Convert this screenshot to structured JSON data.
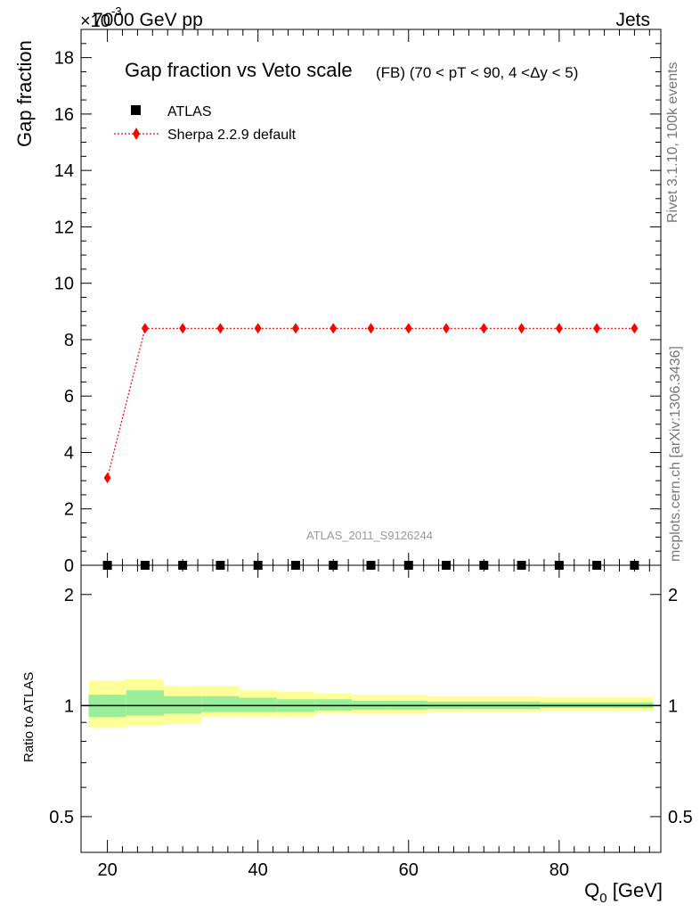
{
  "header": {
    "energy_label": "7000 GeV pp",
    "exponent_label": "×10",
    "exponent_power": "-3",
    "process_label": "Jets"
  },
  "side_labels": {
    "rivet": "Rivet 3.1.10,  100k events",
    "mcplots": "mcplots.cern.ch [arXiv:1306.3436]"
  },
  "colors": {
    "mc_line": "#ff0000",
    "band_inner": "#99ee99",
    "band_outer": "#ffff99"
  },
  "chart_data": [
    {
      "type": "line",
      "title": "Gap fraction vs Veto scale",
      "subtitle": "(FB) (70 < pT <  90, 4 <Δy < 5)",
      "ylabel": "Gap fraction",
      "watermark": "ATLAS_2011_S9126244",
      "ylim": [
        0,
        19
      ],
      "xlim": [
        16.5,
        93.5
      ],
      "yticks": [
        0,
        2,
        4,
        6,
        8,
        10,
        12,
        14,
        16,
        18
      ],
      "grid": false,
      "legend_position": "top-left",
      "series": [
        {
          "name": "ATLAS",
          "marker": "square",
          "x": [
            20,
            25,
            30,
            35,
            40,
            45,
            50,
            55,
            60,
            65,
            70,
            75,
            80,
            85,
            90
          ],
          "y": [
            0,
            0,
            0,
            0,
            0,
            0,
            0,
            0,
            0,
            0,
            0,
            0,
            0,
            0,
            0
          ]
        },
        {
          "name": "Sherpa 2.2.9 default",
          "marker": "diamond",
          "line": "dotted",
          "x": [
            20,
            25,
            30,
            35,
            40,
            45,
            50,
            55,
            60,
            65,
            70,
            75,
            80,
            85,
            90
          ],
          "y": [
            3.1,
            8.4,
            8.4,
            8.4,
            8.4,
            8.4,
            8.4,
            8.4,
            8.4,
            8.4,
            8.4,
            8.4,
            8.4,
            8.4,
            8.4
          ]
        }
      ]
    },
    {
      "type": "area",
      "ylabel": "Ratio to ATLAS",
      "xlabel_main": "Q",
      "xlabel_sub": "0",
      "xlabel_unit": " [GeV]",
      "xlim": [
        16.5,
        93.5
      ],
      "ylim": [
        0.4,
        2.4
      ],
      "xticks": [
        20,
        40,
        60,
        80
      ],
      "yticks": [
        0.5,
        1,
        2
      ],
      "reference_line": 1,
      "bins": [
        {
          "x0": 17.5,
          "x1": 22.5,
          "outer": [
            0.87,
            1.17
          ],
          "inner": [
            0.93,
            1.07
          ]
        },
        {
          "x0": 22.5,
          "x1": 27.5,
          "outer": [
            0.88,
            1.18
          ],
          "inner": [
            0.94,
            1.1
          ]
        },
        {
          "x0": 27.5,
          "x1": 32.5,
          "outer": [
            0.89,
            1.13
          ],
          "inner": [
            0.95,
            1.06
          ]
        },
        {
          "x0": 32.5,
          "x1": 37.5,
          "outer": [
            0.93,
            1.13
          ],
          "inner": [
            0.96,
            1.06
          ]
        },
        {
          "x0": 37.5,
          "x1": 42.5,
          "outer": [
            0.93,
            1.1
          ],
          "inner": [
            0.96,
            1.05
          ]
        },
        {
          "x0": 42.5,
          "x1": 47.5,
          "outer": [
            0.93,
            1.09
          ],
          "inner": [
            0.96,
            1.04
          ]
        },
        {
          "x0": 47.5,
          "x1": 52.5,
          "outer": [
            0.95,
            1.08
          ],
          "inner": [
            0.97,
            1.04
          ]
        },
        {
          "x0": 52.5,
          "x1": 57.5,
          "outer": [
            0.95,
            1.07
          ],
          "inner": [
            0.975,
            1.03
          ]
        },
        {
          "x0": 57.5,
          "x1": 62.5,
          "outer": [
            0.95,
            1.07
          ],
          "inner": [
            0.975,
            1.03
          ]
        },
        {
          "x0": 62.5,
          "x1": 67.5,
          "outer": [
            0.96,
            1.06
          ],
          "inner": [
            0.98,
            1.025
          ]
        },
        {
          "x0": 67.5,
          "x1": 72.5,
          "outer": [
            0.96,
            1.06
          ],
          "inner": [
            0.98,
            1.025
          ]
        },
        {
          "x0": 72.5,
          "x1": 77.5,
          "outer": [
            0.96,
            1.06
          ],
          "inner": [
            0.98,
            1.025
          ]
        },
        {
          "x0": 77.5,
          "x1": 82.5,
          "outer": [
            0.965,
            1.055
          ],
          "inner": [
            0.985,
            1.02
          ]
        },
        {
          "x0": 82.5,
          "x1": 87.5,
          "outer": [
            0.965,
            1.055
          ],
          "inner": [
            0.985,
            1.02
          ]
        },
        {
          "x0": 87.5,
          "x1": 92.5,
          "outer": [
            0.965,
            1.055
          ],
          "inner": [
            0.985,
            1.02
          ]
        }
      ]
    }
  ]
}
